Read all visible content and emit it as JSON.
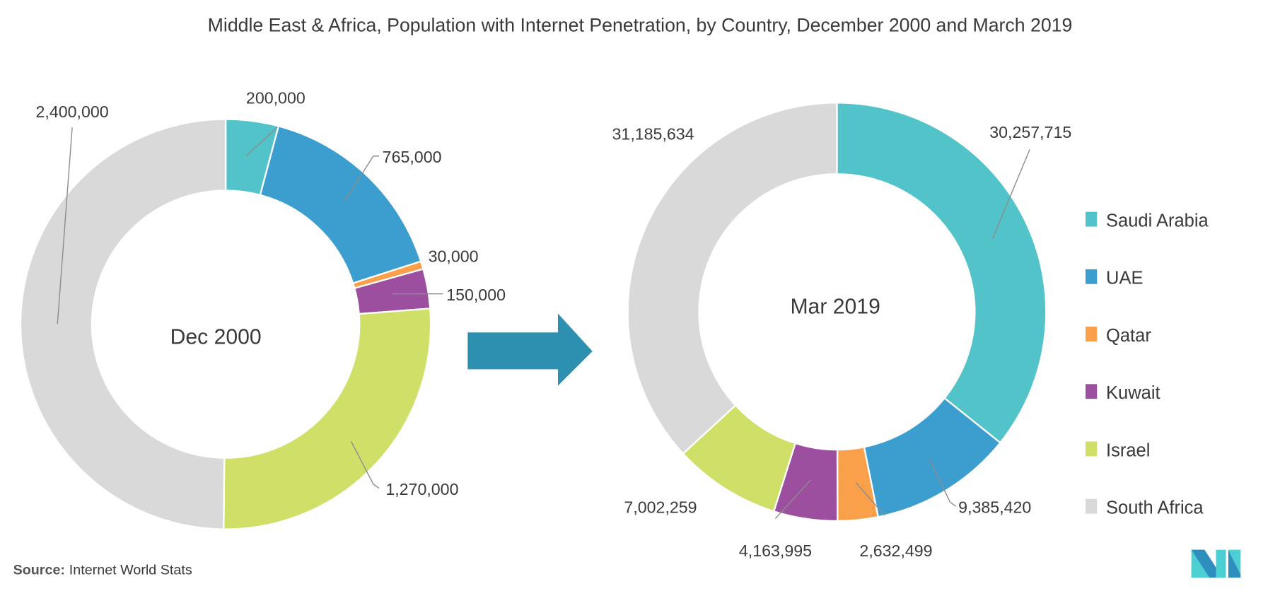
{
  "chart_data": [
    {
      "type": "donut",
      "title": "Middle East & Africa, Population with Internet Penetration, by Country, December 2000 and March 2019",
      "center_label": "Dec 2000",
      "categories": [
        "Saudi Arabia",
        "UAE",
        "Qatar",
        "Kuwait",
        "Israel",
        "South Africa"
      ],
      "values": [
        200000,
        765000,
        30000,
        150000,
        1270000,
        2400000
      ],
      "data_labels": [
        "200,000",
        "765,000",
        "30,000",
        "150,000",
        "1,270,000",
        "2,400,000"
      ]
    },
    {
      "type": "donut",
      "center_label": "Mar 2019",
      "categories": [
        "Saudi Arabia",
        "UAE",
        "Qatar",
        "Kuwait",
        "Israel",
        "South Africa"
      ],
      "values": [
        30257715,
        9385420,
        2632499,
        4163995,
        7002259,
        31185634
      ],
      "data_labels": [
        "30,257,715",
        "9,385,420",
        "2,632,499",
        "4,163,995",
        "7,002,259",
        "31,185,634"
      ]
    }
  ],
  "title": "Middle East & Africa, Population with Internet Penetration, by Country, December 2000 and March 2019",
  "legend": {
    "position": "right",
    "items": [
      {
        "label": "Saudi Arabia",
        "color": "#52C3C9"
      },
      {
        "label": "UAE",
        "color": "#3C9DCF"
      },
      {
        "label": "Qatar",
        "color": "#FBA04A"
      },
      {
        "label": "Kuwait",
        "color": "#9B4F9E"
      },
      {
        "label": "Israel",
        "color": "#D0DF67"
      },
      {
        "label": "South Africa",
        "color": "#D9D9D9"
      }
    ]
  },
  "arrow_color": "#2E90B0",
  "source": {
    "prefix": "Source:",
    "text": "Internet World Stats"
  },
  "logo": {
    "colors": [
      "#2E8FBF",
      "#4CCFD3"
    ]
  }
}
